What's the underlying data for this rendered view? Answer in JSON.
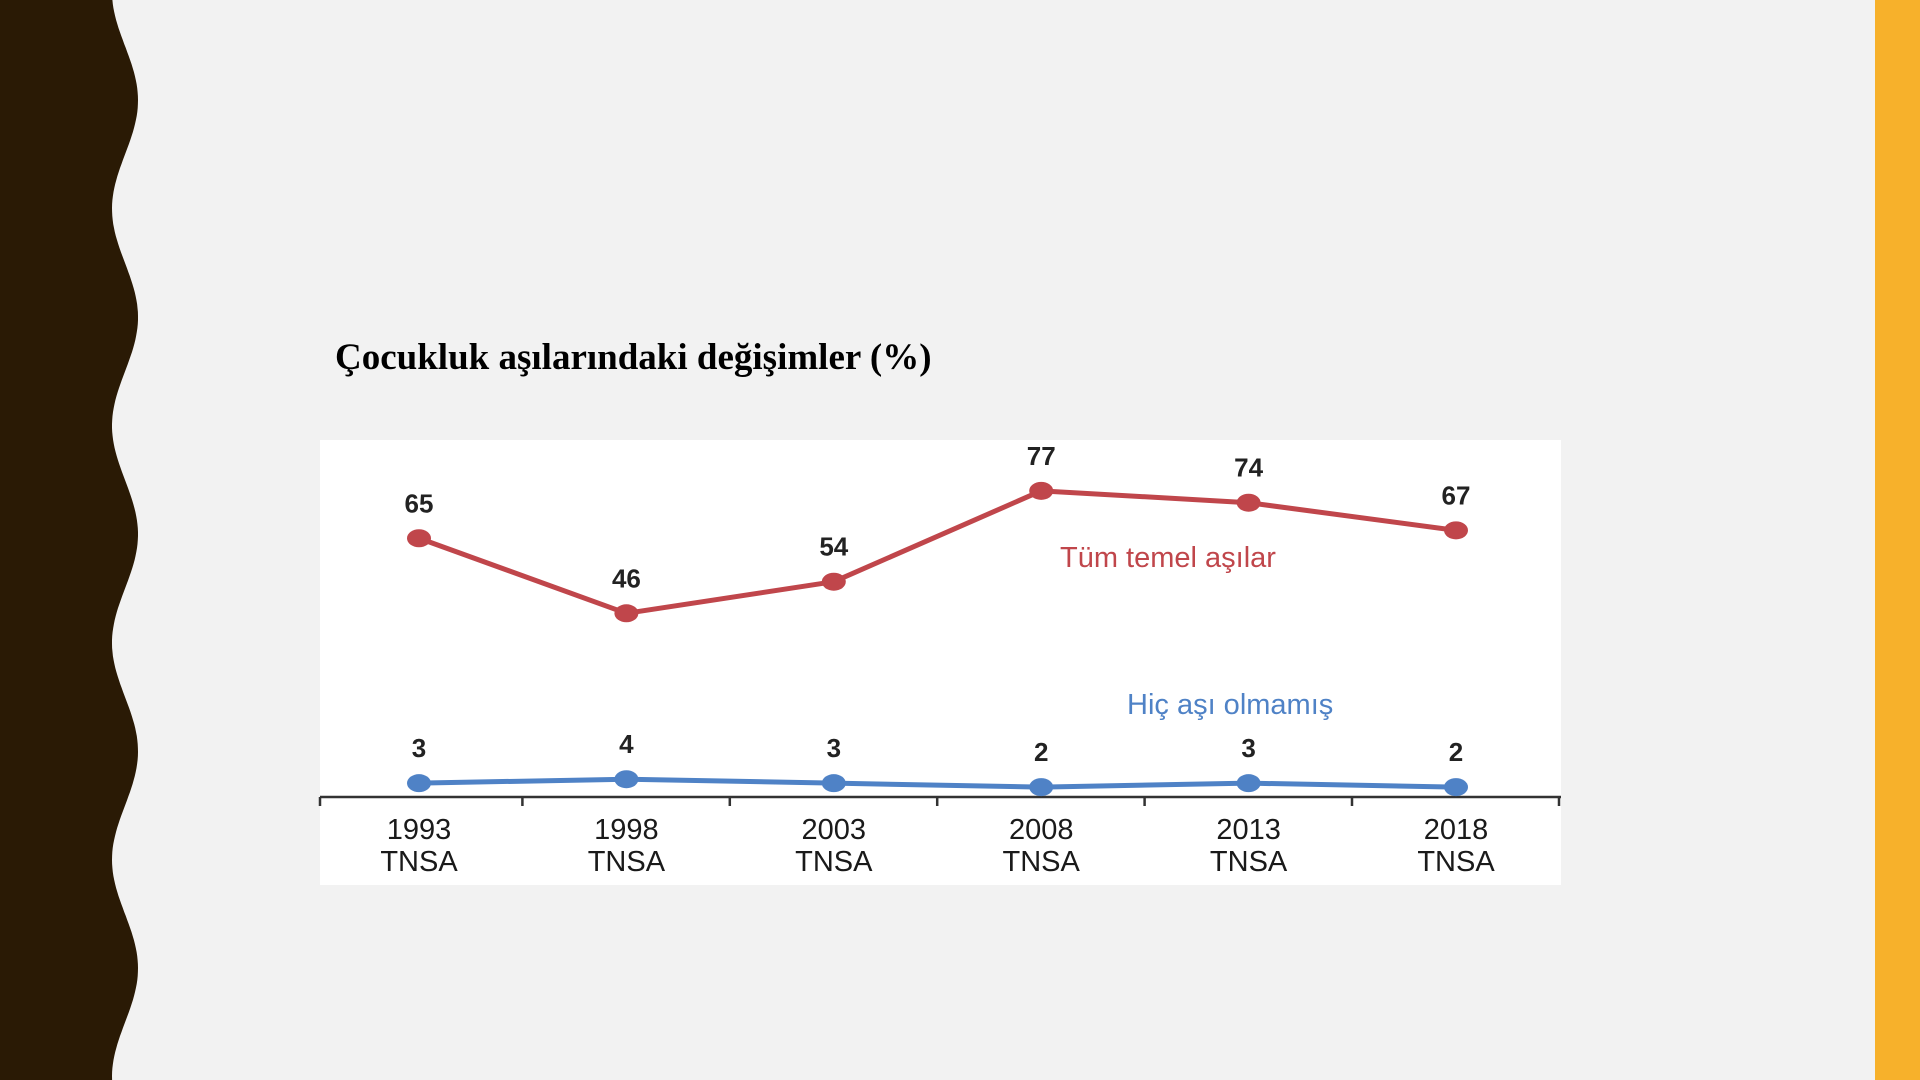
{
  "slide": {
    "title": "Çocukluk aşılarındaki değişimler (%)",
    "colors": {
      "left_band": "#2a1a05",
      "right_bar": "#f7b12b",
      "background": "#f2f2f2"
    }
  },
  "chart_data": {
    "type": "line",
    "title": "",
    "categories": [
      [
        "1993",
        "TNSA"
      ],
      [
        "1998",
        "TNSA"
      ],
      [
        "2003",
        "TNSA"
      ],
      [
        "2008",
        "TNSA"
      ],
      [
        "2013",
        "TNSA"
      ],
      [
        "2018",
        "TNSA"
      ]
    ],
    "series": [
      {
        "name": "Tüm temel aşılar",
        "values": [
          65,
          46,
          54,
          77,
          74,
          67
        ],
        "color": "#c0464b"
      },
      {
        "name": "Hiç aşı olmamış",
        "values": [
          3,
          4,
          3,
          2,
          3,
          2
        ],
        "color": "#4f82c6"
      }
    ],
    "data_labels": true,
    "grid": false,
    "ylim": [
      0,
      80
    ]
  }
}
